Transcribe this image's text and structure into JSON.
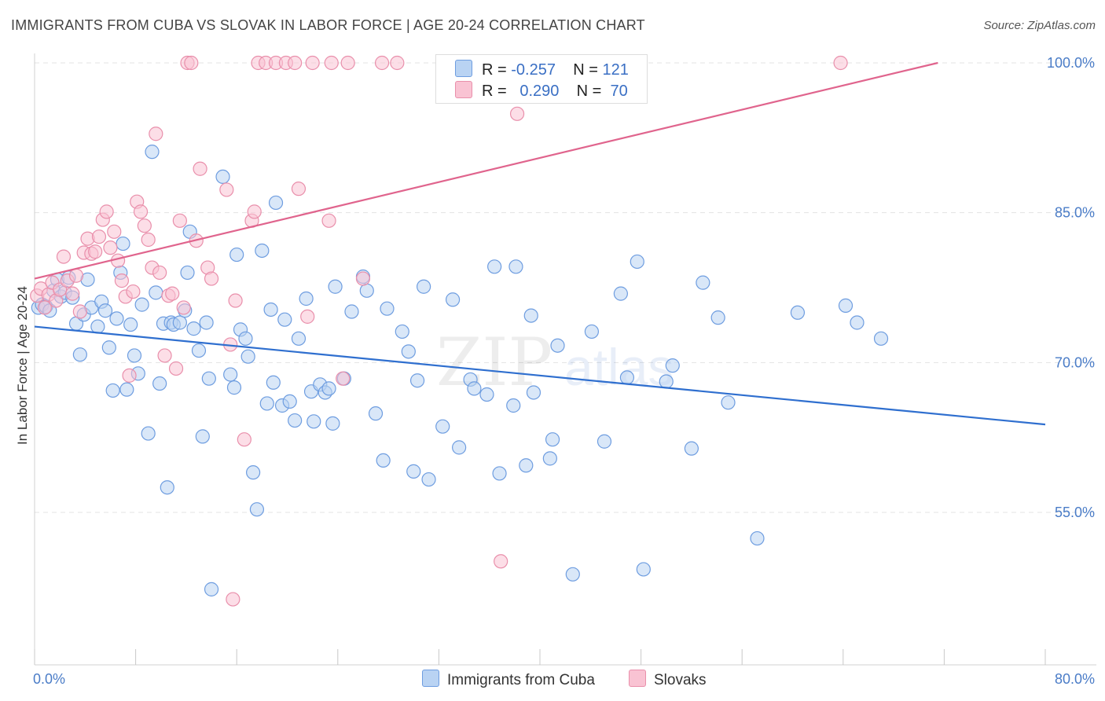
{
  "header": {
    "title": "IMMIGRANTS FROM CUBA VS SLOVAK IN LABOR FORCE | AGE 20-24 CORRELATION CHART",
    "source": "Source: ZipAtlas.com"
  },
  "watermark": {
    "zip": "ZIP",
    "atlas": "atlas"
  },
  "legend": {
    "rows": [
      {
        "r_label": "R =",
        "r_value": "-0.257",
        "n_label": "N =",
        "n_value": "121"
      },
      {
        "r_label": "R =",
        "r_value": "0.290",
        "n_label": "N =",
        "n_value": "70"
      }
    ]
  },
  "bottom_legend": [
    "Immigrants from Cuba",
    "Slovaks"
  ],
  "colors": {
    "cuba_fill": "#b9d3f3",
    "cuba_stroke": "#6e9de0",
    "cuba_line": "#2f6fcf",
    "slovak_fill": "#f9c3d3",
    "slovak_stroke": "#e98fab",
    "slovak_line": "#e0648d",
    "grid": "#e3e3e3",
    "tick_label": "#4a7cc7"
  },
  "chart_data": {
    "type": "scatter",
    "title": "IMMIGRANTS FROM CUBA VS SLOVAK IN LABOR FORCE | AGE 20-24 CORRELATION CHART",
    "xlabel": "",
    "ylabel": "In Labor Force | Age 20-24",
    "xlim": [
      0,
      80
    ],
    "ylim": [
      38,
      103
    ],
    "x_tick_labels": [
      "0.0%",
      "80.0%"
    ],
    "y_ticks": [
      55,
      70,
      85,
      100
    ],
    "y_tick_labels": [
      "55.0%",
      "70.0%",
      "85.0%",
      "100.0%"
    ],
    "grid": true,
    "legend_position": "top-center",
    "series": [
      {
        "name": "Immigrants from Cuba",
        "r": -0.257,
        "n": 121,
        "trend": {
          "x": [
            0,
            80
          ],
          "y": [
            73.6,
            63.8
          ]
        },
        "points": [
          [
            0.3,
            75.5
          ],
          [
            0.6,
            75.8
          ],
          [
            0.9,
            75.6
          ],
          [
            1.2,
            75.2
          ],
          [
            1.5,
            77.2
          ],
          [
            1.8,
            78.3
          ],
          [
            2.1,
            76.6
          ],
          [
            2.4,
            77.0
          ],
          [
            2.7,
            78.5
          ],
          [
            3.0,
            76.5
          ],
          [
            3.3,
            73.9
          ],
          [
            3.6,
            70.8
          ],
          [
            3.9,
            74.8
          ],
          [
            4.2,
            78.3
          ],
          [
            4.5,
            75.5
          ],
          [
            5.0,
            73.6
          ],
          [
            5.3,
            76.1
          ],
          [
            5.6,
            75.2
          ],
          [
            5.9,
            71.5
          ],
          [
            6.2,
            67.2
          ],
          [
            6.5,
            74.4
          ],
          [
            6.8,
            79.0
          ],
          [
            7.0,
            81.9
          ],
          [
            7.3,
            67.3
          ],
          [
            7.6,
            73.8
          ],
          [
            7.9,
            70.7
          ],
          [
            8.2,
            68.9
          ],
          [
            8.5,
            75.8
          ],
          [
            9.0,
            62.9
          ],
          [
            9.3,
            91.1
          ],
          [
            9.6,
            77.0
          ],
          [
            9.9,
            67.9
          ],
          [
            10.2,
            73.9
          ],
          [
            10.5,
            57.5
          ],
          [
            10.8,
            74.0
          ],
          [
            11.0,
            73.8
          ],
          [
            11.5,
            74.0
          ],
          [
            11.9,
            75.2
          ],
          [
            12.1,
            79.0
          ],
          [
            12.3,
            83.1
          ],
          [
            12.6,
            73.4
          ],
          [
            13.0,
            71.2
          ],
          [
            13.3,
            62.6
          ],
          [
            13.6,
            74.0
          ],
          [
            13.8,
            68.4
          ],
          [
            14.0,
            47.3
          ],
          [
            14.9,
            88.6
          ],
          [
            15.5,
            68.8
          ],
          [
            15.8,
            67.5
          ],
          [
            16.0,
            80.8
          ],
          [
            16.3,
            73.3
          ],
          [
            16.7,
            72.4
          ],
          [
            16.9,
            70.6
          ],
          [
            17.3,
            59.0
          ],
          [
            17.6,
            55.3
          ],
          [
            18.0,
            81.2
          ],
          [
            18.4,
            65.9
          ],
          [
            18.7,
            75.3
          ],
          [
            18.9,
            68.0
          ],
          [
            19.1,
            86.0
          ],
          [
            19.6,
            65.7
          ],
          [
            19.8,
            74.3
          ],
          [
            20.2,
            66.1
          ],
          [
            20.6,
            64.2
          ],
          [
            20.9,
            72.4
          ],
          [
            21.5,
            76.4
          ],
          [
            21.9,
            67.1
          ],
          [
            22.1,
            64.1
          ],
          [
            22.6,
            67.8
          ],
          [
            23.0,
            67.0
          ],
          [
            23.3,
            67.4
          ],
          [
            23.6,
            63.9
          ],
          [
            23.8,
            77.6
          ],
          [
            24.5,
            68.4
          ],
          [
            25.1,
            75.1
          ],
          [
            26.0,
            78.6
          ],
          [
            26.3,
            77.2
          ],
          [
            27.0,
            64.9
          ],
          [
            27.6,
            60.2
          ],
          [
            27.9,
            75.4
          ],
          [
            29.1,
            73.1
          ],
          [
            29.6,
            71.1
          ],
          [
            30.0,
            59.1
          ],
          [
            30.3,
            68.2
          ],
          [
            30.8,
            77.6
          ],
          [
            31.2,
            58.3
          ],
          [
            32.3,
            63.6
          ],
          [
            33.1,
            76.3
          ],
          [
            33.6,
            61.5
          ],
          [
            34.5,
            68.3
          ],
          [
            34.8,
            67.4
          ],
          [
            35.8,
            66.8
          ],
          [
            36.4,
            79.6
          ],
          [
            36.8,
            58.9
          ],
          [
            37.9,
            65.7
          ],
          [
            38.1,
            79.6
          ],
          [
            38.9,
            59.7
          ],
          [
            39.3,
            74.7
          ],
          [
            39.5,
            67.0
          ],
          [
            40.8,
            60.4
          ],
          [
            41.0,
            62.3
          ],
          [
            41.4,
            71.7
          ],
          [
            42.6,
            48.8
          ],
          [
            44.1,
            73.1
          ],
          [
            45.1,
            62.1
          ],
          [
            46.4,
            76.9
          ],
          [
            46.9,
            68.5
          ],
          [
            47.7,
            80.1
          ],
          [
            48.2,
            49.3
          ],
          [
            50.0,
            68.1
          ],
          [
            50.5,
            69.7
          ],
          [
            52.0,
            61.4
          ],
          [
            52.9,
            78.0
          ],
          [
            54.1,
            74.5
          ],
          [
            54.9,
            66.0
          ],
          [
            57.2,
            52.4
          ],
          [
            60.4,
            75.0
          ],
          [
            64.2,
            75.7
          ],
          [
            65.1,
            74.0
          ],
          [
            67.0,
            72.4
          ]
        ]
      },
      {
        "name": "Slovaks",
        "r": 0.29,
        "n": 70,
        "trend": {
          "x": [
            0,
            71.5
          ],
          "y": [
            78.4,
            100.0
          ]
        },
        "points": [
          [
            0.2,
            76.7
          ],
          [
            0.5,
            77.4
          ],
          [
            0.8,
            75.5
          ],
          [
            1.1,
            76.8
          ],
          [
            1.4,
            78.0
          ],
          [
            1.7,
            76.2
          ],
          [
            2.0,
            77.3
          ],
          [
            2.3,
            80.6
          ],
          [
            2.6,
            78.2
          ],
          [
            3.0,
            76.9
          ],
          [
            3.3,
            78.7
          ],
          [
            3.6,
            75.1
          ],
          [
            3.9,
            81.0
          ],
          [
            4.2,
            82.4
          ],
          [
            4.5,
            80.9
          ],
          [
            4.8,
            81.1
          ],
          [
            5.1,
            82.6
          ],
          [
            5.4,
            84.3
          ],
          [
            5.7,
            85.1
          ],
          [
            6.0,
            81.5
          ],
          [
            6.3,
            83.1
          ],
          [
            6.6,
            80.2
          ],
          [
            6.9,
            78.2
          ],
          [
            7.2,
            76.6
          ],
          [
            7.5,
            68.7
          ],
          [
            7.8,
            77.1
          ],
          [
            8.1,
            86.1
          ],
          [
            8.4,
            85.1
          ],
          [
            8.7,
            83.7
          ],
          [
            9.0,
            82.3
          ],
          [
            9.3,
            79.5
          ],
          [
            9.6,
            92.9
          ],
          [
            9.9,
            79.0
          ],
          [
            10.3,
            70.7
          ],
          [
            10.6,
            76.7
          ],
          [
            10.9,
            76.9
          ],
          [
            11.2,
            69.4
          ],
          [
            11.5,
            84.2
          ],
          [
            11.8,
            75.5
          ],
          [
            12.1,
            100.0
          ],
          [
            12.4,
            100.0
          ],
          [
            12.8,
            82.2
          ],
          [
            13.1,
            89.4
          ],
          [
            13.7,
            79.5
          ],
          [
            14.0,
            78.4
          ],
          [
            15.2,
            87.3
          ],
          [
            15.5,
            71.8
          ],
          [
            15.7,
            46.3
          ],
          [
            15.9,
            76.2
          ],
          [
            16.6,
            62.3
          ],
          [
            17.2,
            84.2
          ],
          [
            17.4,
            85.1
          ],
          [
            17.7,
            100.0
          ],
          [
            18.3,
            100.0
          ],
          [
            19.1,
            100.0
          ],
          [
            19.9,
            100.0
          ],
          [
            20.6,
            100.0
          ],
          [
            20.9,
            87.4
          ],
          [
            21.6,
            74.6
          ],
          [
            22.0,
            100.0
          ],
          [
            23.3,
            84.2
          ],
          [
            23.5,
            100.0
          ],
          [
            24.4,
            68.4
          ],
          [
            24.8,
            100.0
          ],
          [
            26.0,
            78.4
          ],
          [
            27.5,
            100.0
          ],
          [
            28.7,
            100.0
          ],
          [
            36.9,
            50.1
          ],
          [
            38.2,
            94.9
          ],
          [
            63.8,
            100.0
          ]
        ]
      }
    ]
  }
}
